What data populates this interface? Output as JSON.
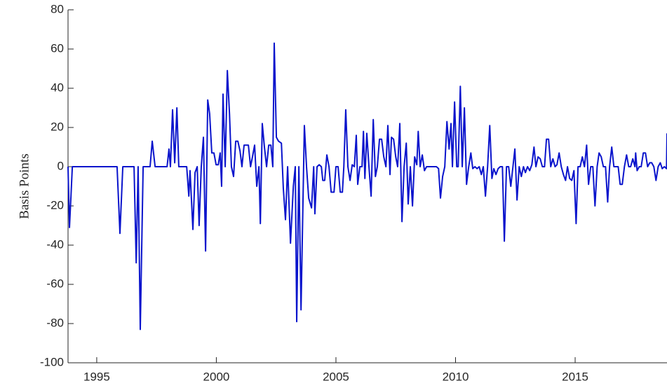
{
  "chart_data": {
    "type": "line",
    "y_label": "Basis Points",
    "x": [
      1993.8,
      1993.86,
      1993.98,
      1995.85,
      1995.97,
      1996.09,
      1996.56,
      1996.65,
      1996.73,
      1996.82,
      1996.94,
      1997.23,
      1997.32,
      1997.44,
      1997.94,
      1998.02,
      1998.08,
      1998.17,
      1998.26,
      1998.35,
      1998.43,
      1998.76,
      1998.85,
      1998.9,
      1999.02,
      1999.11,
      1999.2,
      1999.28,
      1999.37,
      1999.46,
      1999.55,
      1999.64,
      1999.72,
      1999.81,
      1999.9,
      1999.99,
      2000.08,
      2000.16,
      2000.22,
      2000.28,
      2000.37,
      2000.46,
      2000.55,
      2000.63,
      2000.72,
      2000.81,
      2000.9,
      2000.99,
      2001.07,
      2001.16,
      2001.25,
      2001.34,
      2001.43,
      2001.51,
      2001.6,
      2001.69,
      2001.78,
      2001.84,
      2001.92,
      2002.01,
      2002.1,
      2002.19,
      2002.28,
      2002.36,
      2002.42,
      2002.51,
      2002.6,
      2002.72,
      2002.8,
      2002.89,
      2002.98,
      2003.1,
      2003.22,
      2003.3,
      2003.36,
      2003.45,
      2003.54,
      2003.68,
      2003.77,
      2003.86,
      2003.98,
      2004.07,
      2004.12,
      2004.21,
      2004.3,
      2004.39,
      2004.45,
      2004.53,
      2004.62,
      2004.71,
      2004.8,
      2004.92,
      2005.0,
      2005.09,
      2005.18,
      2005.27,
      2005.33,
      2005.41,
      2005.5,
      2005.59,
      2005.68,
      2005.77,
      2005.85,
      2005.91,
      2006.0,
      2006.09,
      2006.15,
      2006.21,
      2006.29,
      2006.38,
      2006.47,
      2006.56,
      2006.65,
      2006.73,
      2006.82,
      2006.91,
      2007.0,
      2007.09,
      2007.17,
      2007.26,
      2007.32,
      2007.41,
      2007.5,
      2007.58,
      2007.67,
      2007.76,
      2007.85,
      2007.94,
      2008.02,
      2008.11,
      2008.2,
      2008.29,
      2008.38,
      2008.44,
      2008.52,
      2008.61,
      2008.7,
      2008.79,
      2008.9,
      2009.05,
      2009.2,
      2009.29,
      2009.37,
      2009.46,
      2009.55,
      2009.64,
      2009.73,
      2009.81,
      2009.87,
      2009.96,
      2010.05,
      2010.11,
      2010.2,
      2010.28,
      2010.37,
      2010.46,
      2010.55,
      2010.64,
      2010.72,
      2010.81,
      2010.9,
      2010.99,
      2011.08,
      2011.16,
      2011.25,
      2011.34,
      2011.43,
      2011.52,
      2011.6,
      2011.69,
      2011.78,
      2011.87,
      2011.96,
      2012.04,
      2012.13,
      2012.22,
      2012.31,
      2012.4,
      2012.48,
      2012.57,
      2012.66,
      2012.75,
      2012.84,
      2012.92,
      2013.01,
      2013.1,
      2013.19,
      2013.28,
      2013.36,
      2013.45,
      2013.54,
      2013.63,
      2013.72,
      2013.8,
      2013.89,
      2013.98,
      2014.07,
      2014.16,
      2014.24,
      2014.33,
      2014.42,
      2014.51,
      2014.6,
      2014.68,
      2014.77,
      2014.86,
      2014.95,
      2015.04,
      2015.12,
      2015.21,
      2015.3,
      2015.39,
      2015.48,
      2015.56,
      2015.65,
      2015.74,
      2015.83,
      2015.92,
      2016.0,
      2016.09,
      2016.18,
      2016.27,
      2016.36,
      2016.44,
      2016.53,
      2016.62,
      2016.71,
      2016.8,
      2016.88,
      2016.97,
      2017.06,
      2017.15,
      2017.24,
      2017.32,
      2017.41,
      2017.5,
      2017.53,
      2017.59,
      2017.68,
      2017.76,
      2017.85,
      2017.94,
      2018.03,
      2018.12,
      2018.2,
      2018.29,
      2018.38,
      2018.47,
      2018.56,
      2018.64,
      2018.73,
      2018.82,
      2018.84
    ],
    "series": [
      {
        "color": "#0a14cc",
        "values": [
          0,
          -31,
          0,
          0,
          -34,
          0,
          0,
          -49,
          0,
          -83,
          0,
          0,
          13,
          0,
          0,
          9,
          0,
          29,
          2,
          30,
          0,
          0,
          -15,
          -2,
          -32,
          -3,
          0,
          -30,
          0,
          15,
          -43,
          34,
          27,
          7,
          7,
          1,
          1,
          7,
          -10,
          37,
          0,
          49,
          27,
          0,
          -5,
          13,
          13,
          8,
          0,
          11,
          11,
          11,
          0,
          5,
          11,
          -10,
          0,
          -29,
          22,
          10,
          0,
          11,
          11,
          0,
          63,
          15,
          13,
          12,
          -11,
          -27,
          0,
          -39,
          -10,
          0,
          -79,
          0,
          -73,
          21,
          0,
          -16,
          -21,
          0,
          -24,
          0,
          1,
          0,
          -7,
          -7,
          6,
          0,
          -13,
          -13,
          0,
          0,
          -13,
          -13,
          0,
          29,
          0,
          -7,
          1,
          0,
          16,
          -9,
          0,
          0,
          18,
          -6,
          17,
          0,
          -15,
          24,
          -5,
          0,
          14,
          14,
          5,
          0,
          21,
          -4,
          15,
          14,
          5,
          0,
          22,
          -28,
          0,
          12,
          -19,
          0,
          -20,
          5,
          1,
          18,
          0,
          6,
          -2,
          0,
          0,
          0,
          0,
          -1,
          -16,
          -5,
          0,
          23,
          9,
          22,
          0,
          33,
          0,
          0,
          41,
          0,
          30,
          -9,
          0,
          7,
          -1,
          0,
          -1,
          0,
          -4,
          0,
          -15,
          0,
          21,
          -6,
          -1,
          -4,
          -1,
          0,
          0,
          -38,
          0,
          0,
          -10,
          0,
          9,
          -17,
          0,
          -5,
          0,
          -3,
          0,
          -2,
          1,
          10,
          0,
          5,
          4,
          0,
          0,
          14,
          14,
          0,
          4,
          0,
          1,
          7,
          0,
          -4,
          -7,
          0,
          -6,
          -7,
          -2,
          -29,
          0,
          0,
          5,
          0,
          11,
          -9,
          0,
          0,
          -20,
          0,
          7,
          5,
          0,
          0,
          -18,
          0,
          10,
          0,
          0,
          0,
          -9,
          -9,
          0,
          6,
          0,
          0,
          4,
          0,
          7,
          -2,
          0,
          0,
          7,
          7,
          0,
          2,
          2,
          0,
          -7,
          0,
          2,
          -1,
          0,
          -1,
          17
        ]
      }
    ],
    "xlim": [
      1993.8,
      2018.84
    ],
    "xticks": [
      1995,
      2000,
      2005,
      2010,
      2015
    ],
    "ylim": [
      -100,
      80
    ],
    "yticks": [
      -100,
      -80,
      -60,
      -40,
      -20,
      0,
      20,
      40,
      60,
      80
    ],
    "grid": false
  }
}
